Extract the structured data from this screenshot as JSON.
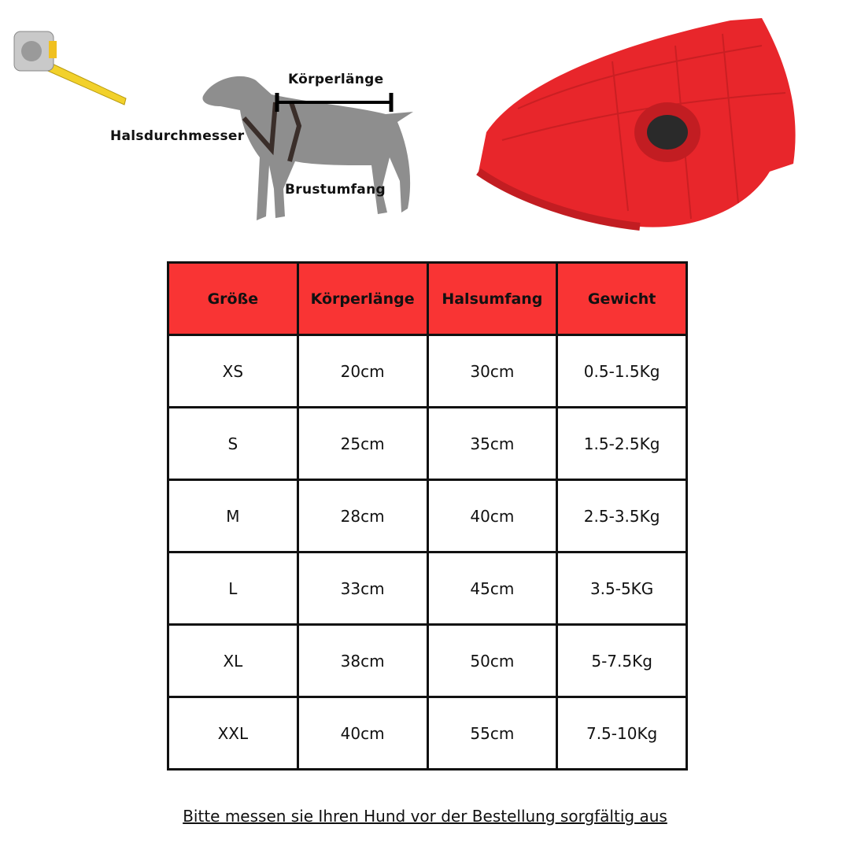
{
  "diagram": {
    "body_length_label": "Körperlänge",
    "neck_label": "Halsdurchmesser",
    "chest_label": "Brustumfang"
  },
  "colors": {
    "header_bg": "#f93434",
    "jacket": "#e8262b",
    "dog": "#8e8e8e"
  },
  "table": {
    "headers": [
      "Größe",
      "Körperlänge",
      "Halsumfang",
      "Gewicht"
    ],
    "rows": [
      [
        "XS",
        "20cm",
        "30cm",
        "0.5-1.5Kg"
      ],
      [
        "S",
        "25cm",
        "35cm",
        "1.5-2.5Kg"
      ],
      [
        "M",
        "28cm",
        "40cm",
        "2.5-3.5Kg"
      ],
      [
        "L",
        "33cm",
        "45cm",
        "3.5-5KG"
      ],
      [
        "XL",
        "38cm",
        "50cm",
        "5-7.5Kg"
      ],
      [
        "XXL",
        "40cm",
        "55cm",
        "7.5-10Kg"
      ]
    ]
  },
  "footer_note": "Bitte messen sie Ihren Hund vor der Bestellung sorgfältig aus"
}
